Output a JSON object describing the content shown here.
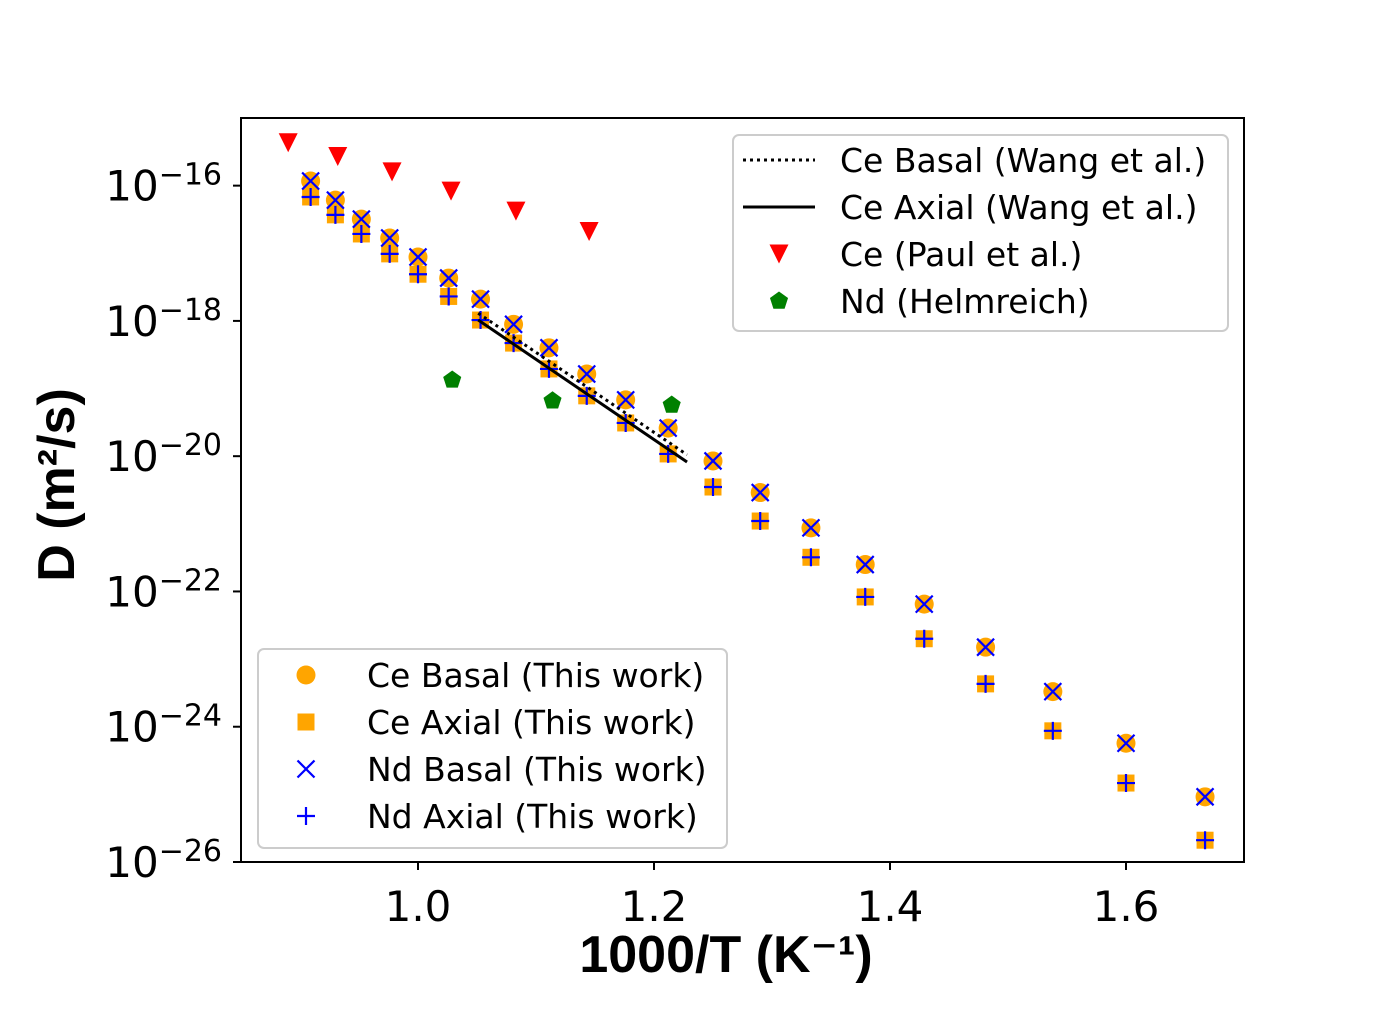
{
  "chart_data": {
    "type": "scatter",
    "xlabel": "1000/T (K⁻¹)",
    "ylabel": "D (m²/s)",
    "xscale": "linear",
    "yscale": "log",
    "xlim": [
      0.85,
      1.7
    ],
    "ylim": [
      1e-26,
      1e-15
    ],
    "grid": false,
    "xticks": [
      1.0,
      1.2,
      1.4,
      1.6
    ],
    "xtick_labels": [
      "1.0",
      "1.2",
      "1.4",
      "1.6"
    ],
    "yticks": [
      1e-16,
      1e-18,
      1e-20,
      1e-22,
      1e-24,
      1e-26
    ],
    "ytick_labels": [
      {
        "base": "10",
        "exp": "−16"
      },
      {
        "base": "10",
        "exp": "−18"
      },
      {
        "base": "10",
        "exp": "−20"
      },
      {
        "base": "10",
        "exp": "−22"
      },
      {
        "base": "10",
        "exp": "−24"
      },
      {
        "base": "10",
        "exp": "−26"
      }
    ],
    "legends": [
      {
        "placement": "upper right"
      },
      {
        "placement": "lower left"
      }
    ],
    "series": [
      {
        "name": "Ce Basal (This work)",
        "kind": "scatter",
        "marker": "circle",
        "color": "#FFA500",
        "legend": "lower left",
        "x": [
          0.909,
          0.93,
          0.952,
          0.976,
          1.0,
          1.026,
          1.053,
          1.081,
          1.111,
          1.143,
          1.176,
          1.212,
          1.25,
          1.29,
          1.333,
          1.379,
          1.429,
          1.481,
          1.538,
          1.6,
          1.667
        ],
        "y": [
          1.17e-16,
          6.1e-17,
          3.2e-17,
          1.68e-17,
          8.8e-18,
          4.3e-18,
          2.1e-18,
          8.9e-19,
          4e-19,
          1.64e-19,
          6.8e-20,
          2.6e-20,
          8.5e-21,
          2.9e-21,
          8.7e-22,
          2.5e-22,
          6.5e-23,
          1.5e-23,
          3.3e-24,
          5.7e-25,
          9.2e-26
        ]
      },
      {
        "name": "Ce Axial (This work)",
        "kind": "scatter",
        "marker": "square",
        "color": "#FFA500",
        "legend": "lower left",
        "x": [
          0.909,
          0.93,
          0.952,
          0.976,
          1.0,
          1.026,
          1.053,
          1.081,
          1.111,
          1.143,
          1.176,
          1.212,
          1.25,
          1.29,
          1.333,
          1.379,
          1.429,
          1.481,
          1.538,
          1.6,
          1.667
        ],
        "y": [
          6.8e-17,
          3.7e-17,
          1.93e-17,
          9.8e-18,
          4.9e-18,
          2.3e-18,
          1.03e-18,
          4.7e-19,
          1.95e-19,
          7.8e-20,
          3.1e-20,
          1.08e-20,
          3.5e-21,
          1.1e-21,
          3.2e-22,
          8.3e-23,
          2e-23,
          4.3e-24,
          8.7e-25,
          1.47e-25,
          2.1e-26
        ]
      },
      {
        "name": "Nd Basal (This work)",
        "kind": "scatter",
        "marker": "x",
        "color": "#0000FF",
        "legend": "lower left",
        "x": [
          0.909,
          0.93,
          0.952,
          0.976,
          1.0,
          1.026,
          1.053,
          1.081,
          1.111,
          1.143,
          1.176,
          1.212,
          1.25,
          1.29,
          1.333,
          1.379,
          1.429,
          1.481,
          1.538,
          1.6,
          1.667
        ],
        "y": [
          1.17e-16,
          6.1e-17,
          3.2e-17,
          1.68e-17,
          8.8e-18,
          4.3e-18,
          2.1e-18,
          8.9e-19,
          4e-19,
          1.64e-19,
          6.8e-20,
          2.6e-20,
          8.5e-21,
          2.9e-21,
          8.7e-22,
          2.5e-22,
          6.5e-23,
          1.5e-23,
          3.3e-24,
          5.7e-25,
          9.2e-26
        ]
      },
      {
        "name": "Nd Axial (This work)",
        "kind": "scatter",
        "marker": "plus",
        "color": "#0000FF",
        "legend": "lower left",
        "x": [
          0.909,
          0.93,
          0.952,
          0.976,
          1.0,
          1.026,
          1.053,
          1.081,
          1.111,
          1.143,
          1.176,
          1.212,
          1.25,
          1.29,
          1.333,
          1.379,
          1.429,
          1.481,
          1.538,
          1.6,
          1.667
        ],
        "y": [
          6.8e-17,
          3.7e-17,
          1.93e-17,
          9.8e-18,
          4.9e-18,
          2.3e-18,
          1.03e-18,
          4.7e-19,
          1.95e-19,
          7.8e-20,
          3.1e-20,
          1.08e-20,
          3.5e-21,
          1.1e-21,
          3.2e-22,
          8.3e-23,
          2e-23,
          4.3e-24,
          8.7e-25,
          1.47e-25,
          2.1e-26
        ]
      },
      {
        "name": "Ce Basal (Wang et al.)",
        "kind": "line",
        "linestyle": "dotted",
        "color": "#000000",
        "legend": "upper right",
        "x": [
          1.051,
          1.228
        ],
        "y": [
          1.3e-18,
          1.05e-20
        ]
      },
      {
        "name": "Ce Axial (Wang et al.)",
        "kind": "line",
        "linestyle": "solid",
        "color": "#000000",
        "legend": "upper right",
        "x": [
          1.051,
          1.228
        ],
        "y": [
          1.03e-18,
          8.2e-21
        ]
      },
      {
        "name": "Ce (Paul et al.)",
        "kind": "scatter",
        "marker": "triangle_down",
        "color": "#FF0000",
        "legend": "upper right",
        "x": [
          0.89,
          0.932,
          0.978,
          1.028,
          1.083,
          1.145
        ],
        "y": [
          4.3e-16,
          2.7e-16,
          1.6e-16,
          8.3e-17,
          4.2e-17,
          2.1e-17
        ]
      },
      {
        "name": "Nd (Helmreich)",
        "kind": "scatter",
        "marker": "pentagon",
        "color": "#008000",
        "legend": "upper right",
        "x": [
          1.029,
          1.114,
          1.215
        ],
        "y": [
          1.34e-19,
          6.6e-20,
          5.7e-20
        ]
      }
    ]
  }
}
